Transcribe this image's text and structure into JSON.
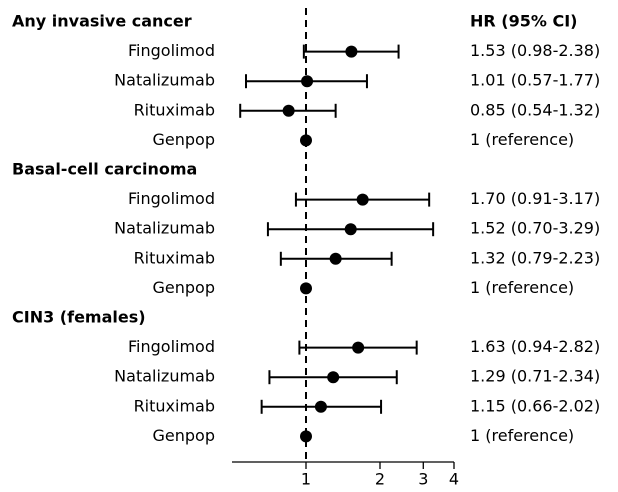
{
  "chart_data": {
    "type": "forest",
    "column_header": "HR (95% CI)",
    "xscale": "log",
    "xlim": [
      0.5,
      4
    ],
    "xticks": [
      1,
      2,
      3,
      4
    ],
    "reference_line": 1,
    "color": "#000000",
    "groups": [
      {
        "title": "Any invasive cancer",
        "categories": [
          "Fingolimod",
          "Natalizumab",
          "Rituximab",
          "Genpop"
        ],
        "values": [
          1.53,
          1.01,
          0.85,
          1
        ],
        "lower": [
          0.98,
          0.57,
          0.54,
          null
        ],
        "upper": [
          2.38,
          1.77,
          1.32,
          null
        ],
        "value_labels": [
          "1.53 (0.98-2.38)",
          "1.01 (0.57-1.77)",
          "0.85 (0.54-1.32)",
          "1 (reference)"
        ]
      },
      {
        "title": "Basal-cell carcinoma",
        "categories": [
          "Fingolimod",
          "Natalizumab",
          "Rituximab",
          "Genpop"
        ],
        "values": [
          1.7,
          1.52,
          1.32,
          1
        ],
        "lower": [
          0.91,
          0.7,
          0.79,
          null
        ],
        "upper": [
          3.17,
          3.29,
          2.23,
          null
        ],
        "value_labels": [
          "1.70 (0.91-3.17)",
          "1.52 (0.70-3.29)",
          "1.32 (0.79-2.23)",
          "1 (reference)"
        ]
      },
      {
        "title": "CIN3 (females)",
        "categories": [
          "Fingolimod",
          "Natalizumab",
          "Rituximab",
          "Genpop"
        ],
        "values": [
          1.63,
          1.29,
          1.15,
          1
        ],
        "lower": [
          0.94,
          0.71,
          0.66,
          null
        ],
        "upper": [
          2.82,
          2.34,
          2.02,
          null
        ],
        "value_labels": [
          "1.63 (0.94-2.82)",
          "1.29 (0.71-2.34)",
          "1.15 (0.66-2.02)",
          "1 (reference)"
        ]
      }
    ]
  }
}
